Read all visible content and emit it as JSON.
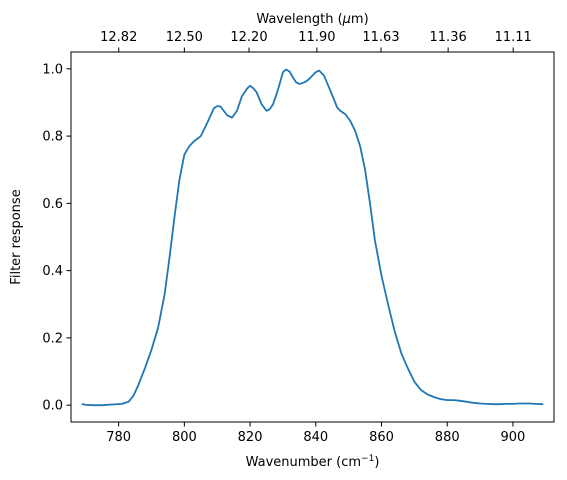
{
  "chart_data": {
    "type": "line",
    "title": "",
    "xlabel_main": "Wavenumber (cm",
    "xlabel_sup": "−1",
    "xlabel_close": ")",
    "xlabel_top_main": "Wavelength (",
    "xlabel_top_mu": "μ",
    "xlabel_top_unit": "m)",
    "ylabel": "Filter response",
    "xlim": [
      765.5,
      912.5
    ],
    "ylim": [
      -0.05,
      1.05
    ],
    "grid": false,
    "line_color": "#1f77b4",
    "x_ticks": [
      780,
      800,
      820,
      840,
      860,
      880,
      900
    ],
    "x_tick_labels": [
      "780",
      "800",
      "820",
      "840",
      "860",
      "880",
      "900"
    ],
    "y_ticks": [
      0.0,
      0.2,
      0.4,
      0.6,
      0.8,
      1.0
    ],
    "y_tick_labels": [
      "0.0",
      "0.2",
      "0.4",
      "0.6",
      "0.8",
      "1.0"
    ],
    "top_x_ticks_wavelength_um": [
      12.82,
      12.5,
      12.2,
      11.9,
      11.63,
      11.36,
      11.11
    ],
    "top_x_tick_labels": [
      "12.82",
      "12.50",
      "12.20",
      "11.90",
      "11.63",
      "11.36",
      "11.11"
    ],
    "series": [
      {
        "x": [
          769.0,
          770.0,
          772.0,
          775.0,
          778.0,
          781.0,
          783.0,
          784.5,
          786.0,
          788.0,
          790.0,
          792.0,
          794.0,
          795.5,
          797.0,
          798.5,
          800.0,
          801.5,
          803.0,
          805.0,
          807.0,
          809.0,
          810.0,
          811.0,
          812.0,
          813.0,
          814.5,
          816.0,
          817.5,
          819.0,
          820.0,
          821.0,
          822.0,
          823.5,
          825.0,
          826.0,
          827.0,
          828.0,
          829.0,
          830.0,
          831.0,
          832.0,
          833.0,
          834.0,
          835.0,
          836.0,
          837.0,
          838.0,
          839.0,
          840.0,
          841.0,
          842.5,
          844.0,
          845.5,
          846.5,
          847.5,
          849.0,
          850.5,
          852.0,
          853.5,
          855.0,
          856.5,
          858.0,
          860.0,
          862.0,
          864.0,
          866.0,
          868.0,
          870.0,
          872.0,
          874.0,
          876.0,
          878.0,
          880.0,
          882.0,
          884.0,
          886.0,
          888.0,
          890.0,
          892.0,
          894.0,
          896.0,
          898.0,
          900.0,
          902.0,
          905.0,
          907.0,
          909.0
        ],
        "y": [
          0.003,
          0.001,
          0.0,
          0.0,
          0.002,
          0.004,
          0.01,
          0.028,
          0.06,
          0.11,
          0.165,
          0.23,
          0.33,
          0.44,
          0.56,
          0.67,
          0.745,
          0.77,
          0.785,
          0.8,
          0.84,
          0.883,
          0.889,
          0.888,
          0.875,
          0.862,
          0.855,
          0.875,
          0.918,
          0.94,
          0.95,
          0.942,
          0.93,
          0.895,
          0.875,
          0.88,
          0.895,
          0.923,
          0.955,
          0.99,
          0.998,
          0.992,
          0.975,
          0.96,
          0.955,
          0.958,
          0.962,
          0.97,
          0.98,
          0.99,
          0.995,
          0.98,
          0.945,
          0.91,
          0.885,
          0.875,
          0.865,
          0.845,
          0.815,
          0.77,
          0.7,
          0.6,
          0.49,
          0.385,
          0.3,
          0.22,
          0.155,
          0.11,
          0.07,
          0.045,
          0.032,
          0.024,
          0.018,
          0.015,
          0.015,
          0.013,
          0.01,
          0.007,
          0.005,
          0.004,
          0.003,
          0.003,
          0.004,
          0.004,
          0.005,
          0.005,
          0.004,
          0.003
        ]
      }
    ]
  }
}
